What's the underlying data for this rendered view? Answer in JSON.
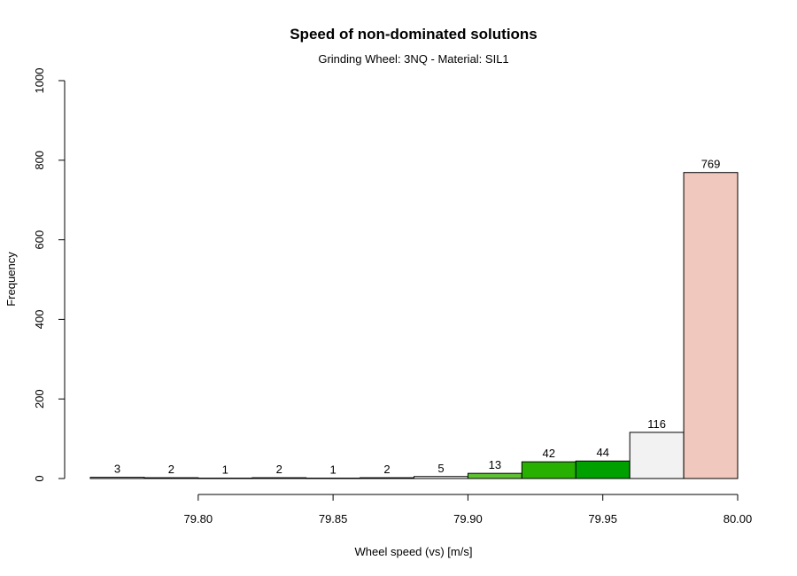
{
  "chart_data": {
    "type": "bar",
    "title": "Speed of non-dominated solutions",
    "subtitle": "Grinding Wheel: 3NQ - Material: SIL1",
    "xlabel": "Wheel speed (vs) [m/s]",
    "ylabel": "Frequency",
    "xlim": [
      79.76,
      80.0
    ],
    "ylim": [
      0,
      1000
    ],
    "x_ticks": [
      79.8,
      79.85,
      79.9,
      79.95,
      80.0
    ],
    "x_tick_labels": [
      "79.80",
      "79.85",
      "79.90",
      "79.95",
      "80.00"
    ],
    "y_ticks": [
      0,
      200,
      400,
      600,
      800,
      1000
    ],
    "y_tick_labels": [
      "0",
      "200",
      "400",
      "600",
      "800",
      "1000"
    ],
    "grid": false,
    "bins": [
      {
        "start": 79.76,
        "end": 79.78,
        "value": 3,
        "label": "3",
        "color": "#ffffff"
      },
      {
        "start": 79.78,
        "end": 79.8,
        "value": 2,
        "label": "2",
        "color": "#ffffff"
      },
      {
        "start": 79.8,
        "end": 79.82,
        "value": 1,
        "label": "1",
        "color": "#ffffff"
      },
      {
        "start": 79.82,
        "end": 79.84,
        "value": 2,
        "label": "2",
        "color": "#ffffff"
      },
      {
        "start": 79.84,
        "end": 79.86,
        "value": 1,
        "label": "1",
        "color": "#ffffff"
      },
      {
        "start": 79.86,
        "end": 79.88,
        "value": 2,
        "label": "2",
        "color": "#ffffff"
      },
      {
        "start": 79.88,
        "end": 79.9,
        "value": 5,
        "label": "5",
        "color": "#ffffff"
      },
      {
        "start": 79.9,
        "end": 79.92,
        "value": 13,
        "label": "13",
        "color": "#5ec132"
      },
      {
        "start": 79.92,
        "end": 79.94,
        "value": 42,
        "label": "42",
        "color": "#27b000"
      },
      {
        "start": 79.94,
        "end": 79.96,
        "value": 44,
        "label": "44",
        "color": "#00a000"
      },
      {
        "start": 79.96,
        "end": 79.98,
        "value": 116,
        "label": "116",
        "color": "#f2f2f2"
      },
      {
        "start": 79.98,
        "end": 80.0,
        "value": 769,
        "label": "769",
        "color": "#f1c8be"
      }
    ]
  }
}
